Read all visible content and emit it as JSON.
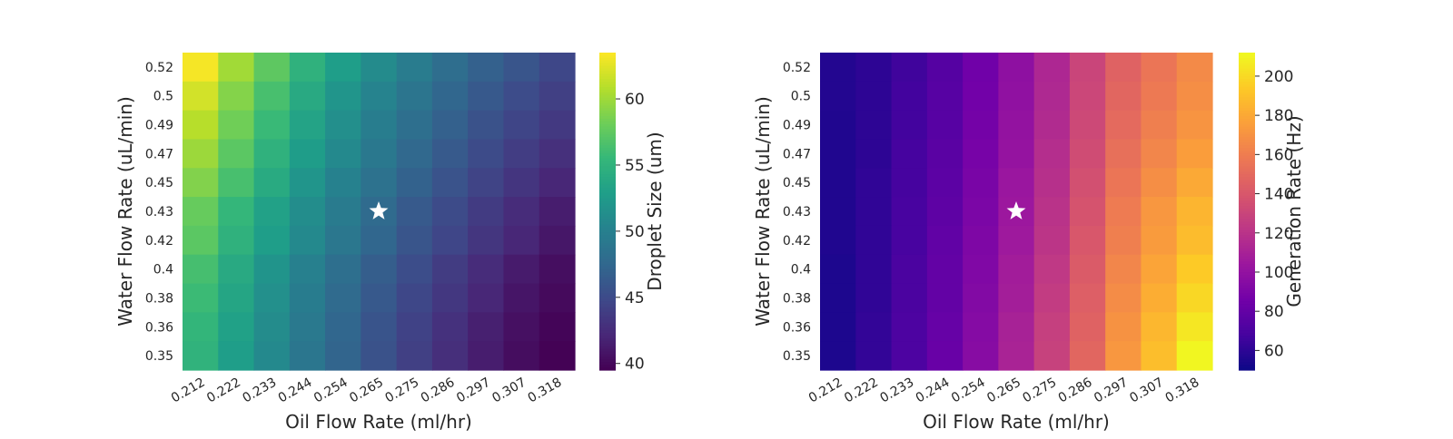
{
  "chart_data": [
    {
      "type": "heatmap",
      "title": "",
      "xlabel": "Oil Flow Rate (ml/hr)",
      "ylabel": "Water Flow Rate (uL/min)",
      "colorbar_label": "Droplet Size (um)",
      "colormap": "viridis",
      "x": [
        "0.212",
        "0.222",
        "0.233",
        "0.244",
        "0.254",
        "0.265",
        "0.275",
        "0.286",
        "0.297",
        "0.307",
        "0.318"
      ],
      "y": [
        "0.52",
        "0.5",
        "0.49",
        "0.47",
        "0.45",
        "0.43",
        "0.42",
        "0.4",
        "0.38",
        "0.36",
        "0.35"
      ],
      "vmin": 39.5,
      "vmax": 63.5,
      "colorbar_ticks": [
        40,
        45,
        50,
        55,
        60
      ],
      "values": [
        [
          63.2,
          60.1,
          57.4,
          54.9,
          52.8,
          51.0,
          49.5,
          48.1,
          46.9,
          45.9,
          44.7
        ],
        [
          61.9,
          59.0,
          56.4,
          54.0,
          52.0,
          50.3,
          48.8,
          47.4,
          46.2,
          45.1,
          44.1
        ],
        [
          60.9,
          58.2,
          55.7,
          53.4,
          51.4,
          49.7,
          48.2,
          46.9,
          45.6,
          44.5,
          43.5
        ],
        [
          59.9,
          57.3,
          54.9,
          52.7,
          50.8,
          49.1,
          47.6,
          46.3,
          45.0,
          43.9,
          42.8
        ],
        [
          58.9,
          56.4,
          54.1,
          52.0,
          50.1,
          48.5,
          47.0,
          45.7,
          44.4,
          43.2,
          42.1
        ],
        [
          57.8,
          55.4,
          53.2,
          51.2,
          49.4,
          47.8,
          46.3,
          45.0,
          43.7,
          42.5,
          41.4
        ],
        [
          57.3,
          54.9,
          52.8,
          50.8,
          49.0,
          47.4,
          45.9,
          44.6,
          43.3,
          42.1,
          41.0
        ],
        [
          56.3,
          54.0,
          51.9,
          50.0,
          48.2,
          46.6,
          45.2,
          43.8,
          42.5,
          41.3,
          40.4
        ],
        [
          55.8,
          53.6,
          51.5,
          49.6,
          47.8,
          46.2,
          44.7,
          43.4,
          42.1,
          40.9,
          40.1
        ],
        [
          55.3,
          53.1,
          51.1,
          49.2,
          47.4,
          45.8,
          44.3,
          42.9,
          41.6,
          40.5,
          39.8
        ],
        [
          55.0,
          52.8,
          50.8,
          48.9,
          47.2,
          45.6,
          44.1,
          42.7,
          41.4,
          40.3,
          39.6
        ]
      ],
      "marker": {
        "symbol": "star",
        "color": "#ffffff",
        "x": "0.265",
        "y": "0.43"
      }
    },
    {
      "type": "heatmap",
      "title": "",
      "xlabel": "Oil Flow Rate (ml/hr)",
      "ylabel": "Water Flow Rate (uL/min)",
      "colorbar_label": "Generation Rate (Hz)",
      "colormap": "plasma",
      "x": [
        "0.212",
        "0.222",
        "0.233",
        "0.244",
        "0.254",
        "0.265",
        "0.275",
        "0.286",
        "0.297",
        "0.307",
        "0.318"
      ],
      "y": [
        "0.52",
        "0.5",
        "0.49",
        "0.47",
        "0.45",
        "0.43",
        "0.42",
        "0.4",
        "0.38",
        "0.36",
        "0.35"
      ],
      "vmin": 50,
      "vmax": 212,
      "colorbar_ticks": [
        60,
        80,
        100,
        120,
        140,
        160,
        180,
        200
      ],
      "values": [
        [
          57,
          60,
          66,
          74,
          85,
          98,
          113,
          130,
          146,
          156,
          166
        ],
        [
          57,
          60,
          67,
          75,
          86,
          99,
          114,
          131,
          148,
          158,
          168
        ],
        [
          56,
          60,
          67,
          75,
          87,
          100,
          115,
          132,
          150,
          161,
          171
        ],
        [
          56,
          60,
          68,
          76,
          88,
          101,
          117,
          134,
          153,
          164,
          175
        ],
        [
          56,
          61,
          68,
          77,
          89,
          103,
          118,
          136,
          156,
          168,
          180
        ],
        [
          56,
          61,
          69,
          78,
          90,
          104,
          120,
          138,
          159,
          172,
          185
        ],
        [
          56,
          61,
          69,
          79,
          91,
          105,
          121,
          140,
          161,
          174,
          188
        ],
        [
          55,
          61,
          70,
          80,
          92,
          107,
          123,
          142,
          164,
          178,
          194
        ],
        [
          55,
          61,
          70,
          80,
          93,
          108,
          125,
          144,
          167,
          182,
          199
        ],
        [
          55,
          62,
          71,
          81,
          94,
          110,
          127,
          146,
          170,
          186,
          205
        ],
        [
          55,
          62,
          71,
          82,
          95,
          111,
          128,
          148,
          172,
          189,
          211
        ]
      ],
      "marker": {
        "symbol": "star",
        "color": "#ffffff",
        "x": "0.265",
        "y": "0.43"
      }
    }
  ]
}
